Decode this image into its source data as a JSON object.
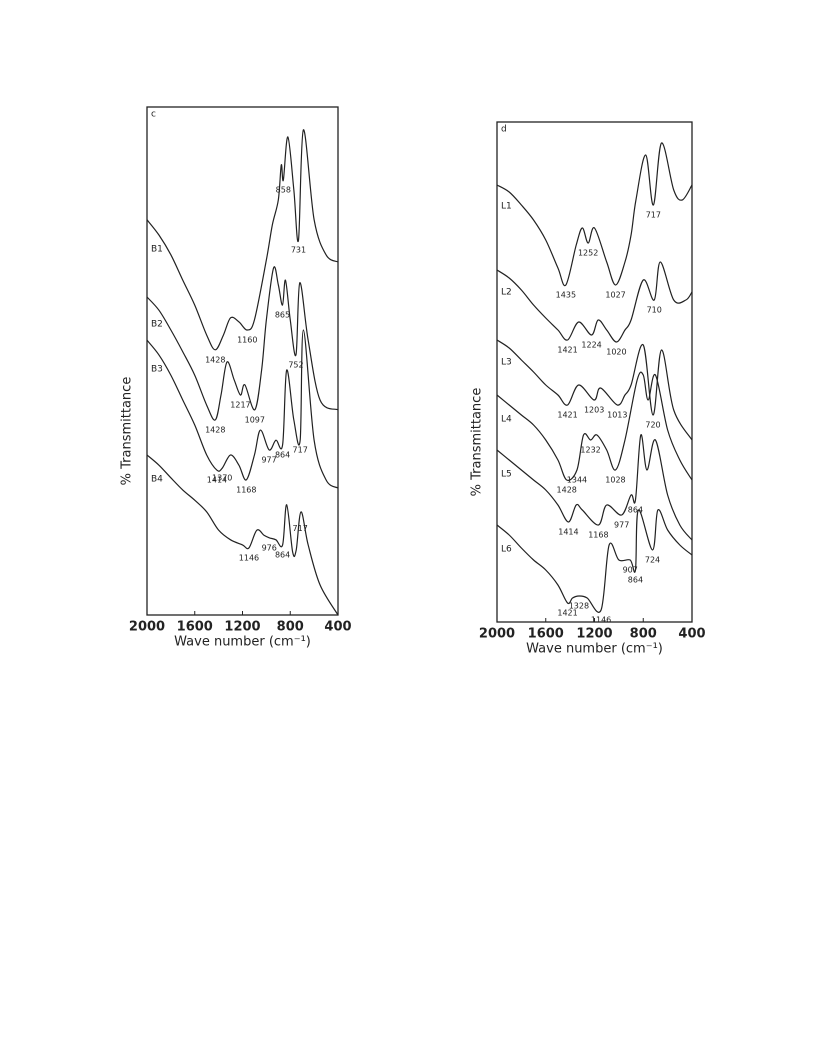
{
  "chart_data": [
    {
      "type": "line",
      "panel_label": "c",
      "x_label": "Wave number (cm⁻¹)",
      "y_label": "% Transmittance",
      "color": "#222",
      "xlim": [
        2000,
        400
      ],
      "ylim": [
        0,
        100
      ],
      "xticks": [
        2000,
        1600,
        1200,
        800,
        400
      ],
      "series": [
        {
          "name": "B1",
          "x": [
            2000,
            1900,
            1800,
            1700,
            1600,
            1500,
            1428,
            1360,
            1300,
            1230,
            1160,
            1100,
            1000,
            950,
            900,
            875,
            858,
            820,
            770,
            731,
            690,
            600,
            500,
            400
          ],
          "values": [
            77.8,
            74.8,
            70.9,
            65.9,
            61.0,
            55.1,
            52.2,
            55.1,
            58.5,
            57.7,
            56.1,
            58.1,
            69.9,
            76.8,
            81.7,
            88.6,
            85.6,
            94.1,
            83.7,
            73.8,
            95.5,
            77.8,
            70.9,
            69.5
          ],
          "peaks": [
            1428,
            1160,
            858,
            731
          ]
        },
        {
          "name": "B2",
          "x": [
            2000,
            1900,
            1800,
            1700,
            1600,
            1500,
            1428,
            1380,
            1330,
            1270,
            1217,
            1180,
            1097,
            1040,
            1000,
            940,
            900,
            865,
            840,
            800,
            752,
            720,
            650,
            550,
            400
          ],
          "values": [
            62.6,
            60.0,
            56.1,
            51.8,
            47.2,
            41.3,
            38.4,
            43.3,
            49.8,
            46.3,
            43.3,
            45.3,
            40.4,
            48.2,
            58.1,
            68.3,
            65.0,
            61.0,
            65.9,
            58.1,
            51.2,
            65.4,
            54.1,
            42.3,
            40.4
          ],
          "peaks": [
            1428,
            1217,
            1097,
            865,
            752
          ]
        },
        {
          "name": "B3",
          "x": [
            2000,
            1900,
            1800,
            1700,
            1600,
            1500,
            1414,
            1370,
            1300,
            1230,
            1168,
            1100,
            1050,
            977,
            920,
            864,
            830,
            770,
            717,
            690,
            600,
            500,
            400
          ],
          "values": [
            54.1,
            51.2,
            47.2,
            42.3,
            37.4,
            31.5,
            28.5,
            28.9,
            31.5,
            29.5,
            26.6,
            31.5,
            36.4,
            32.5,
            34.4,
            33.5,
            48.2,
            38.4,
            34.4,
            56.1,
            34.4,
            26.6,
            25.0
          ],
          "peaks": [
            1414,
            1370,
            1168,
            977,
            864,
            717
          ]
        },
        {
          "name": "B4",
          "x": [
            2000,
            1900,
            1800,
            1700,
            1600,
            1500,
            1400,
            1300,
            1200,
            1146,
            1080,
            1020,
            976,
            920,
            864,
            830,
            780,
            750,
            710,
            650,
            550,
            400
          ],
          "values": [
            31.5,
            29.5,
            27.0,
            24.6,
            22.6,
            20.3,
            16.7,
            14.8,
            13.8,
            13.2,
            16.7,
            15.7,
            15.2,
            14.8,
            13.8,
            21.7,
            12.4,
            12.8,
            20.3,
            13.8,
            5.9,
            0
          ],
          "peaks": [
            1146,
            976,
            864,
            717
          ]
        }
      ]
    },
    {
      "type": "line",
      "panel_label": "d",
      "x_label": "Wave number (cm⁻¹)",
      "y_label": "% Transmittance",
      "color": "#222",
      "xlim": [
        2000,
        400
      ],
      "ylim": [
        0,
        100
      ],
      "xticks": [
        2000,
        1600,
        1200,
        800,
        400
      ],
      "series": [
        {
          "name": "L1",
          "x": [
            2000,
            1900,
            1800,
            1700,
            1600,
            1500,
            1435,
            1350,
            1300,
            1252,
            1200,
            1100,
            1027,
            950,
            900,
            860,
            780,
            717,
            650,
            550,
            480,
            400
          ],
          "values": [
            87.4,
            86,
            83.4,
            80.4,
            76.4,
            70.8,
            67.4,
            75.4,
            78.8,
            75.8,
            78.8,
            72,
            67.4,
            72,
            77.4,
            84.4,
            93.4,
            83.4,
            95.8,
            86.4,
            84.4,
            87.4
          ],
          "peaks": [
            1435,
            1252,
            1027,
            717
          ]
        },
        {
          "name": "L2",
          "x": [
            2000,
            1900,
            1800,
            1700,
            1600,
            1500,
            1421,
            1330,
            1224,
            1170,
            1100,
            1020,
            950,
            900,
            800,
            710,
            660,
            550,
            450,
            400
          ],
          "values": [
            70.4,
            68.8,
            66.4,
            63.4,
            60.8,
            58.4,
            56.4,
            60,
            57.4,
            60.4,
            58.4,
            56,
            58.4,
            60.4,
            68.4,
            64.4,
            72,
            64.4,
            64.4,
            66
          ],
          "peaks": [
            1421,
            1224,
            1020,
            710
          ]
        },
        {
          "name": "L3",
          "x": [
            2000,
            1900,
            1800,
            1700,
            1600,
            1500,
            1421,
            1330,
            1203,
            1150,
            1013,
            950,
            900,
            800,
            720,
            650,
            550,
            400
          ],
          "values": [
            56.4,
            54.8,
            52.4,
            50,
            47.4,
            45.4,
            43.4,
            47.4,
            44.4,
            46.8,
            43.4,
            45.4,
            47.4,
            55.4,
            41.4,
            54.4,
            42.4,
            36.4
          ],
          "peaks": [
            1421,
            1203,
            1013,
            720
          ]
        },
        {
          "name": "L4",
          "x": [
            2000,
            1900,
            1800,
            1700,
            1600,
            1500,
            1428,
            1344,
            1290,
            1232,
            1180,
            1100,
            1028,
            950,
            850,
            800,
            760,
            700,
            600,
            500,
            400
          ],
          "values": [
            45.4,
            43.4,
            41.4,
            39.4,
            36.4,
            32.4,
            28.4,
            30.4,
            37.4,
            36.4,
            37.4,
            34.4,
            30.4,
            36.4,
            48.4,
            49.4,
            44.4,
            49.4,
            38.4,
            32.4,
            28.4
          ],
          "peaks": [
            1428,
            1344,
            1232,
            1028
          ]
        },
        {
          "name": "L5",
          "x": [
            2000,
            1900,
            1800,
            1700,
            1600,
            1500,
            1414,
            1350,
            1300,
            1168,
            1100,
            977,
            900,
            864,
            820,
            770,
            700,
            600,
            500,
            400
          ],
          "values": [
            34.4,
            32.4,
            30.4,
            28.4,
            26.4,
            23.4,
            20,
            23.4,
            22.4,
            19.4,
            23.4,
            21.4,
            25.4,
            24.4,
            37.4,
            30.4,
            36.4,
            25.4,
            19.4,
            16.4
          ],
          "peaks": [
            1414,
            1168,
            977,
            864
          ]
        },
        {
          "name": "L6",
          "x": [
            2000,
            1900,
            1800,
            1700,
            1600,
            1500,
            1421,
            1380,
            1328,
            1260,
            1146,
            1080,
            1000,
            907,
            864,
            840,
            724,
            680,
            600,
            500,
            400
          ],
          "values": [
            19.4,
            17.4,
            14.8,
            12.4,
            10.4,
            7.4,
            3.8,
            4.8,
            5.2,
            4.8,
            2.4,
            15.4,
            12.4,
            12.4,
            10.4,
            22.4,
            14.4,
            22.4,
            18.4,
            15.4,
            13.4
          ],
          "peaks": [
            1421,
            1328,
            1146,
            907,
            864,
            724
          ]
        }
      ]
    }
  ]
}
